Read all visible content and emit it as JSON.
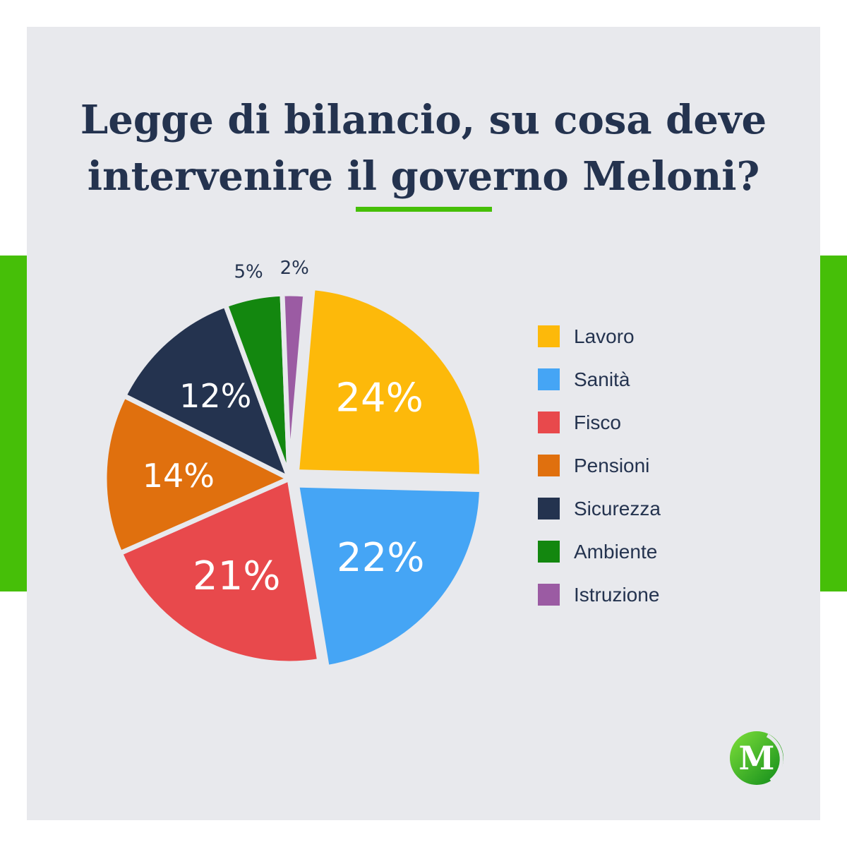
{
  "chart_data": {
    "type": "pie",
    "title": "Legge di bilancio, su cosa deve\nintervenire il governo Meloni?",
    "slices": [
      {
        "label": "Lavoro",
        "value": 24,
        "value_label": "24%",
        "color": "#fdb90a"
      },
      {
        "label": "Sanità",
        "value": 22,
        "value_label": "22%",
        "color": "#45a5f5"
      },
      {
        "label": "Fisco",
        "value": 21,
        "value_label": "21%",
        "color": "#e8494c"
      },
      {
        "label": "Pensioni",
        "value": 14,
        "value_label": "14%",
        "color": "#e0700e"
      },
      {
        "label": "Sicurezza",
        "value": 12,
        "value_label": "12%",
        "color": "#24334f"
      },
      {
        "label": "Ambiente",
        "value": 5,
        "value_label": "5%",
        "color": "#13870f"
      },
      {
        "label": "Istruzione",
        "value": 2,
        "value_label": "2%",
        "color": "#9b5ba3"
      }
    ],
    "legend_position": "right",
    "start_angle_deg": 5,
    "direction": "clockwise",
    "exploded_slices": [
      "Lavoro",
      "Sanità"
    ]
  },
  "brand": {
    "logo_letter": "M",
    "accent_color": "#46bf08",
    "text_color": "#24334f",
    "background_color": "#e8e9ed"
  }
}
